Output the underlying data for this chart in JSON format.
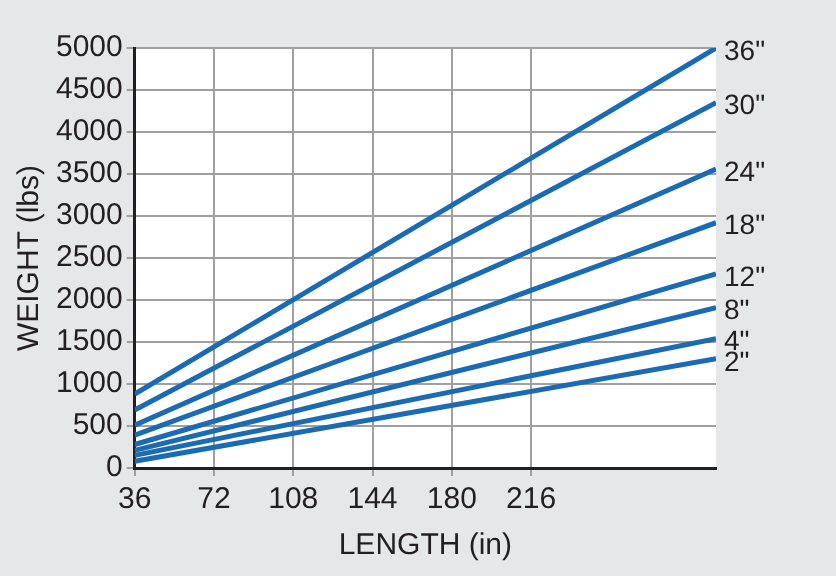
{
  "chart_data": {
    "type": "line",
    "xlabel": "LENGTH (in)",
    "ylabel": "WEIGHT (lbs)",
    "x": [
      36,
      300
    ],
    "series": [
      {
        "name": "36\"",
        "color": "#1a6ab4",
        "values": [
          880,
          5000
        ]
      },
      {
        "name": "30\"",
        "color": "#1a6ab4",
        "values": [
          690,
          4350
        ]
      },
      {
        "name": "24\"",
        "color": "#1a6ab4",
        "values": [
          510,
          3560
        ]
      },
      {
        "name": "18\"",
        "color": "#1a6ab4",
        "values": [
          390,
          2920
        ]
      },
      {
        "name": "12\"",
        "color": "#1a6ab4",
        "values": [
          280,
          2310
        ]
      },
      {
        "name": "8\"",
        "color": "#1a6ab4",
        "values": [
          210,
          1910
        ]
      },
      {
        "name": "4\"",
        "color": "#1a6ab4",
        "values": [
          150,
          1540
        ]
      },
      {
        "name": "2\"",
        "color": "#1a6ab4",
        "values": [
          80,
          1300
        ]
      }
    ],
    "xlim": [
      36,
      300
    ],
    "xticks": [
      36,
      72,
      108,
      144,
      180,
      216
    ],
    "ylim": [
      0,
      5000
    ],
    "yticks": [
      0,
      500,
      1000,
      1500,
      2000,
      2500,
      3000,
      3500,
      4000,
      4500,
      5000
    ],
    "grid": true,
    "legend": false,
    "marker": "none",
    "line_style": "solid"
  }
}
